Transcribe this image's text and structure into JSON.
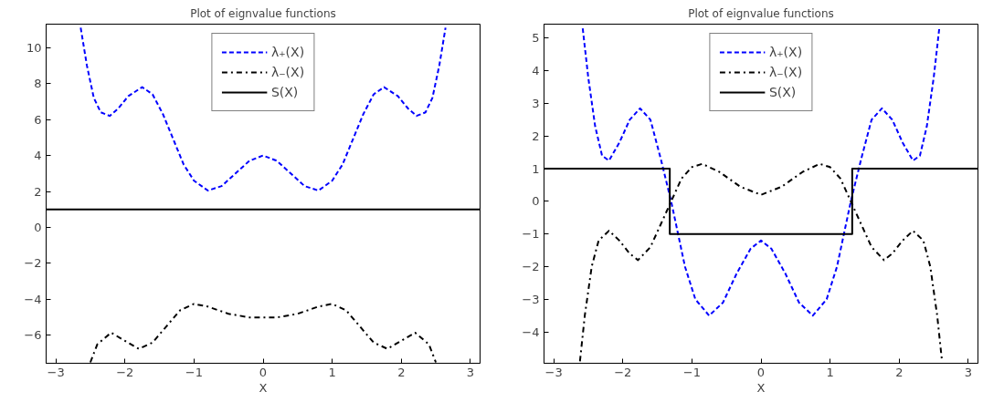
{
  "chart_data": [
    {
      "type": "line",
      "title": "Plot of eignvalue functions",
      "xlabel": "X",
      "xlim": [
        -3.14,
        3.14
      ],
      "ylim": [
        -7.55,
        11.3
      ],
      "xticks": [
        -3,
        -2,
        -1,
        0,
        1,
        2,
        3
      ],
      "yticks": [
        -6,
        -4,
        -2,
        0,
        2,
        4,
        6,
        8,
        10
      ],
      "grid": false,
      "legend": "top",
      "series": [
        {
          "name": "λ₊(X)",
          "color": "#0000ff",
          "line_style": "dashed",
          "x": [
            -2.64,
            -2.55,
            -2.45,
            -2.35,
            -2.22,
            -2.1,
            -1.95,
            -1.75,
            -1.6,
            -1.45,
            -1.3,
            -1.15,
            -1.0,
            -0.8,
            -0.6,
            -0.4,
            -0.2,
            0,
            0.2,
            0.4,
            0.6,
            0.8,
            1.0,
            1.15,
            1.3,
            1.45,
            1.6,
            1.75,
            1.95,
            2.1,
            2.22,
            2.35,
            2.45,
            2.55,
            2.64
          ],
          "values": [
            11.1,
            9.0,
            7.2,
            6.4,
            6.2,
            6.6,
            7.3,
            7.8,
            7.4,
            6.3,
            4.9,
            3.5,
            2.6,
            2.05,
            2.3,
            3.0,
            3.7,
            4.0,
            3.7,
            3.0,
            2.3,
            2.05,
            2.6,
            3.5,
            4.9,
            6.3,
            7.4,
            7.8,
            7.3,
            6.6,
            6.2,
            6.4,
            7.2,
            9.0,
            11.1
          ]
        },
        {
          "name": "λ₋(X)",
          "color": "#000000",
          "line_style": "dashdot",
          "x": [
            -2.5,
            -2.4,
            -2.2,
            -2.0,
            -1.8,
            -1.6,
            -1.4,
            -1.2,
            -1.0,
            -0.8,
            -0.5,
            -0.2,
            0,
            0.2,
            0.5,
            0.8,
            1.0,
            1.2,
            1.4,
            1.6,
            1.8,
            2.0,
            2.2,
            2.4,
            2.5
          ],
          "values": [
            -7.5,
            -6.5,
            -5.85,
            -6.3,
            -6.75,
            -6.4,
            -5.5,
            -4.6,
            -4.25,
            -4.4,
            -4.8,
            -5.0,
            -5.0,
            -5.0,
            -4.8,
            -4.4,
            -4.25,
            -4.6,
            -5.5,
            -6.4,
            -6.75,
            -6.3,
            -5.85,
            -6.5,
            -7.5
          ]
        },
        {
          "name": "S(X)",
          "color": "#000000",
          "line_style": "solid",
          "x": [
            -3.14,
            3.14
          ],
          "values": [
            1,
            1
          ]
        }
      ]
    },
    {
      "type": "line",
      "title": "Plot of eignvalue functions",
      "xlabel": "X",
      "xlim": [
        -3.14,
        3.14
      ],
      "ylim": [
        -4.96,
        5.43
      ],
      "xticks": [
        -3,
        -2,
        -1,
        0,
        1,
        2,
        3
      ],
      "yticks": [
        -4,
        -3,
        -2,
        -1,
        0,
        1,
        2,
        3,
        4,
        5
      ],
      "grid": false,
      "legend": "top",
      "series": [
        {
          "name": "λ₊(X)",
          "color": "#0000ff",
          "line_style": "dashed",
          "x": [
            -2.58,
            -2.5,
            -2.4,
            -2.3,
            -2.2,
            -2.05,
            -1.9,
            -1.75,
            -1.6,
            -1.45,
            -1.3,
            -1.2,
            -1.1,
            -0.95,
            -0.75,
            -0.55,
            -0.35,
            -0.15,
            0,
            0.15,
            0.35,
            0.55,
            0.75,
            0.95,
            1.1,
            1.2,
            1.3,
            1.45,
            1.6,
            1.75,
            1.9,
            2.05,
            2.2,
            2.3,
            2.4,
            2.5,
            2.58
          ],
          "values": [
            5.3,
            3.8,
            2.3,
            1.4,
            1.25,
            1.8,
            2.5,
            2.85,
            2.5,
            1.3,
            0.0,
            -1.0,
            -2.0,
            -3.0,
            -3.5,
            -3.1,
            -2.2,
            -1.45,
            -1.2,
            -1.45,
            -2.2,
            -3.1,
            -3.5,
            -3.0,
            -2.0,
            -1.0,
            0.0,
            1.3,
            2.5,
            2.85,
            2.5,
            1.8,
            1.25,
            1.4,
            2.3,
            3.8,
            5.3
          ]
        },
        {
          "name": "λ₋(X)",
          "color": "#000000",
          "line_style": "dashdot",
          "x": [
            -2.62,
            -2.55,
            -2.45,
            -2.35,
            -2.2,
            -2.05,
            -1.9,
            -1.78,
            -1.6,
            -1.45,
            -1.3,
            -1.15,
            -1.0,
            -0.85,
            -0.6,
            -0.3,
            0,
            0.3,
            0.6,
            0.85,
            1.0,
            1.15,
            1.3,
            1.45,
            1.6,
            1.78,
            1.9,
            2.05,
            2.2,
            2.35,
            2.45,
            2.55,
            2.62
          ],
          "values": [
            -4.9,
            -3.5,
            -2.0,
            -1.2,
            -0.9,
            -1.2,
            -1.6,
            -1.8,
            -1.4,
            -0.7,
            0.0,
            0.7,
            1.05,
            1.15,
            0.9,
            0.45,
            0.2,
            0.45,
            0.9,
            1.15,
            1.05,
            0.7,
            0.0,
            -0.7,
            -1.4,
            -1.8,
            -1.6,
            -1.2,
            -0.9,
            -1.2,
            -2.0,
            -3.5,
            -4.9
          ]
        },
        {
          "name": "S(X)",
          "color": "#000000",
          "line_style": "solid",
          "x": [
            -3.14,
            -1.32,
            -1.32,
            1.32,
            1.32,
            3.14
          ],
          "values": [
            1,
            1,
            -1,
            -1,
            1,
            1
          ]
        }
      ]
    }
  ]
}
